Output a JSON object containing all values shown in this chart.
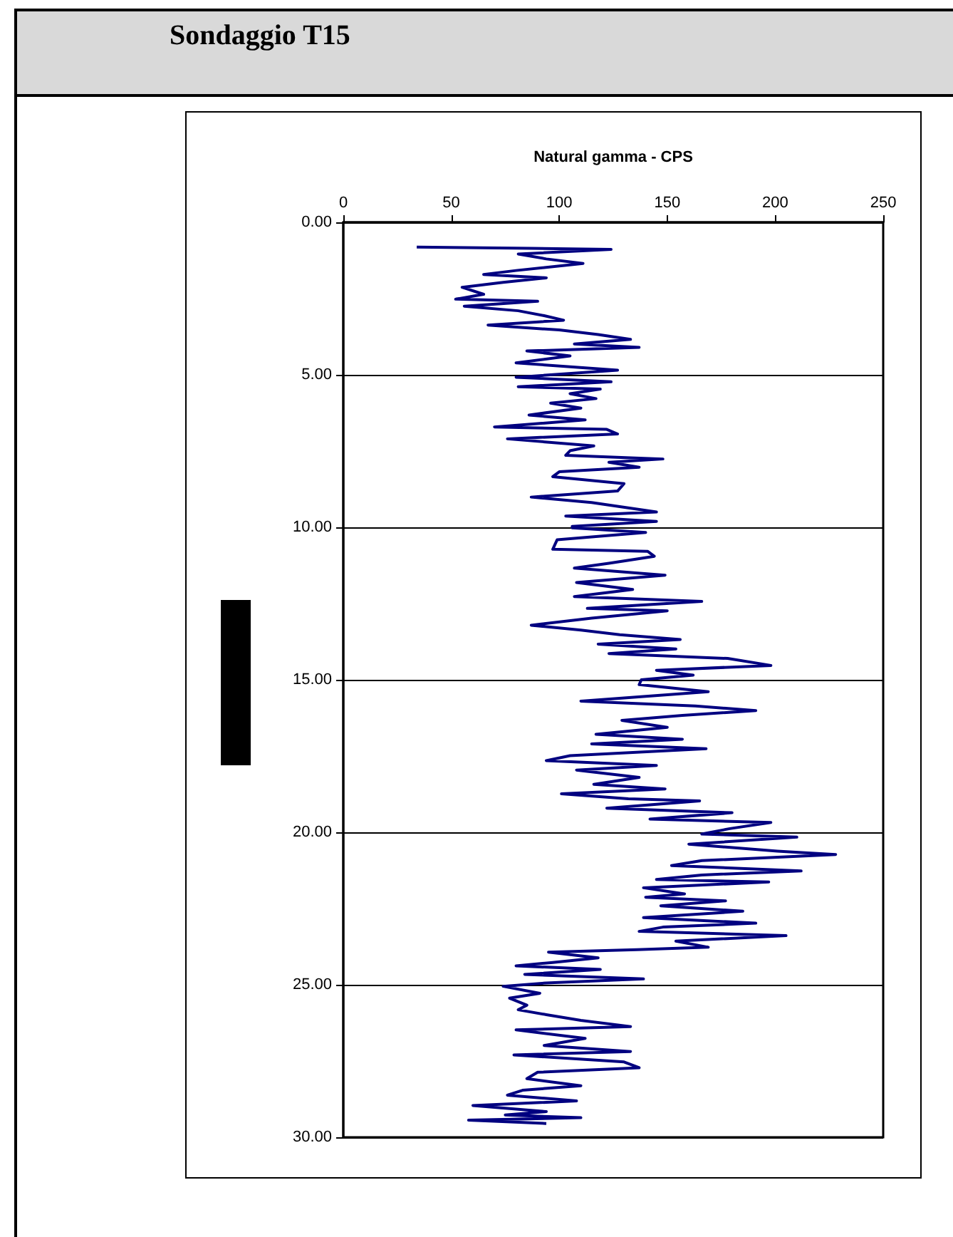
{
  "chart_data": {
    "type": "line",
    "title": "Sondaggio T15",
    "xlabel": "Natural gamma - CPS",
    "xlim": [
      0,
      250
    ],
    "xticks": [
      0,
      50,
      100,
      150,
      200,
      250
    ],
    "ylim": [
      30,
      0
    ],
    "yticks": [
      {
        "value": 0,
        "label": "0.00"
      },
      {
        "value": 5,
        "label": "5.00"
      },
      {
        "value": 10,
        "label": "10.00"
      },
      {
        "value": 15,
        "label": "15.00"
      },
      {
        "value": 20,
        "label": "20.00"
      },
      {
        "value": 25,
        "label": "25.00"
      },
      {
        "value": 30,
        "label": "30.00"
      }
    ],
    "grid": "y",
    "series": [
      {
        "color": "#000080",
        "x": [
          34,
          87,
          124,
          81,
          94,
          111,
          80,
          65,
          94,
          74,
          55,
          65,
          52,
          90,
          56,
          81,
          93,
          102,
          67,
          100,
          118,
          133,
          107,
          137,
          85,
          105,
          80,
          112,
          127,
          80,
          124,
          81,
          119,
          105,
          117,
          96,
          110,
          86,
          112,
          70,
          122,
          127,
          76,
          116,
          105,
          103,
          148,
          123,
          137,
          100,
          97,
          130,
          127,
          87,
          115,
          145,
          103,
          145,
          106,
          106,
          140,
          99,
          97,
          141,
          144,
          123,
          107,
          149,
          108,
          134,
          107,
          166,
          113,
          150,
          115,
          87,
          110,
          128,
          156,
          118,
          154,
          123,
          178,
          198,
          145,
          162,
          138,
          137,
          169,
          110,
          163,
          191,
          157,
          129,
          150,
          117,
          157,
          115,
          168,
          105,
          94,
          145,
          108,
          137,
          116,
          149,
          101,
          132,
          165,
          122,
          180,
          142,
          198,
          179,
          166,
          210,
          160,
          201,
          228,
          166,
          152,
          212,
          166,
          145,
          197,
          139,
          158,
          140,
          177,
          147,
          185,
          139,
          191,
          148,
          137,
          205,
          154,
          169,
          136,
          95,
          118,
          97,
          80,
          119,
          84,
          139,
          94,
          74,
          91,
          77,
          85,
          81,
          94,
          110,
          133,
          80,
          112,
          93,
          133,
          79,
          130,
          137,
          90,
          85,
          110,
          83,
          76,
          108,
          60,
          94,
          75,
          110,
          58,
          94
        ],
        "values": [
          0.81,
          0.85,
          0.89,
          1.04,
          1.2,
          1.35,
          1.58,
          1.71,
          1.82,
          1.97,
          2.13,
          2.36,
          2.52,
          2.59,
          2.75,
          2.9,
          3.06,
          3.21,
          3.37,
          3.53,
          3.68,
          3.84,
          3.99,
          4.1,
          4.22,
          4.38,
          4.61,
          4.77,
          4.85,
          5.08,
          5.23,
          5.39,
          5.47,
          5.62,
          5.78,
          5.93,
          6.09,
          6.32,
          6.48,
          6.71,
          6.79,
          6.94,
          7.1,
          7.33,
          7.49,
          7.64,
          7.76,
          7.87,
          8.03,
          8.18,
          8.34,
          8.57,
          8.81,
          9.01,
          9.19,
          9.5,
          9.63,
          9.81,
          9.97,
          10.02,
          10.17,
          10.41,
          10.72,
          10.79,
          10.95,
          11.18,
          11.34,
          11.57,
          11.81,
          12.04,
          12.27,
          12.43,
          12.66,
          12.74,
          12.98,
          13.21,
          13.37,
          13.52,
          13.68,
          13.83,
          13.99,
          14.14,
          14.3,
          14.53,
          14.69,
          14.85,
          15,
          15.16,
          15.39,
          15.7,
          15.86,
          16.01,
          16.17,
          16.33,
          16.56,
          16.79,
          16.95,
          17.1,
          17.26,
          17.49,
          17.65,
          17.81,
          17.96,
          18.2,
          18.43,
          18.58,
          18.74,
          18.9,
          18.97,
          19.21,
          19.36,
          19.57,
          19.68,
          19.88,
          20.06,
          20.16,
          20.39,
          20.62,
          20.73,
          20.93,
          21.09,
          21.27,
          21.4,
          21.55,
          21.63,
          21.82,
          22.02,
          22.13,
          22.25,
          22.41,
          22.59,
          22.8,
          22.98,
          23.11,
          23.25,
          23.39,
          23.57,
          23.77,
          23.85,
          23.93,
          24.12,
          24.27,
          24.38,
          24.5,
          24.66,
          24.81,
          24.94,
          25.05,
          25.28,
          25.44,
          25.67,
          25.82,
          25.98,
          26.17,
          26.37,
          26.48,
          26.76,
          26.99,
          27.19,
          27.3,
          27.53,
          27.72,
          27.87,
          28.08,
          28.31,
          28.46,
          28.62,
          28.81,
          28.96,
          29.16,
          29.27,
          29.36,
          29.44,
          29.55
        ]
      }
    ]
  }
}
